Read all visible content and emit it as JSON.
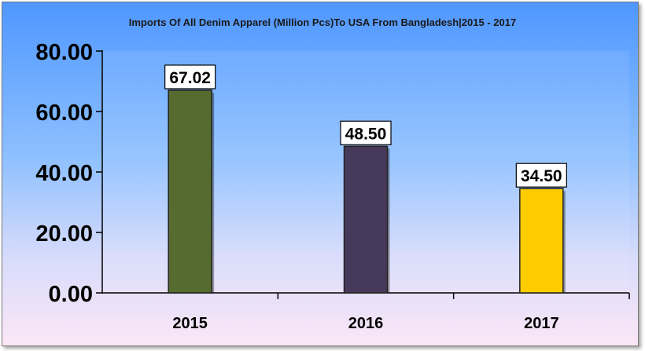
{
  "chart_data": {
    "type": "bar",
    "title": "Imports Of All Denim Apparel (Million Pcs)To USA From Bangladesh|2015 - 2017",
    "categories": [
      "2015",
      "2016",
      "2017"
    ],
    "values": [
      67.02,
      48.5,
      34.5
    ],
    "value_labels": [
      "67.02",
      "48.50",
      "34.50"
    ],
    "bar_colors": [
      "#556b2f",
      "#47395a",
      "#ffcc00"
    ],
    "ylim": [
      0,
      80
    ],
    "yticks": [
      0,
      20,
      40,
      60,
      80
    ],
    "ytick_labels": [
      "0.00",
      "20.00",
      "40.00",
      "60.00",
      "80.00"
    ],
    "grid": false,
    "legend": "none"
  }
}
